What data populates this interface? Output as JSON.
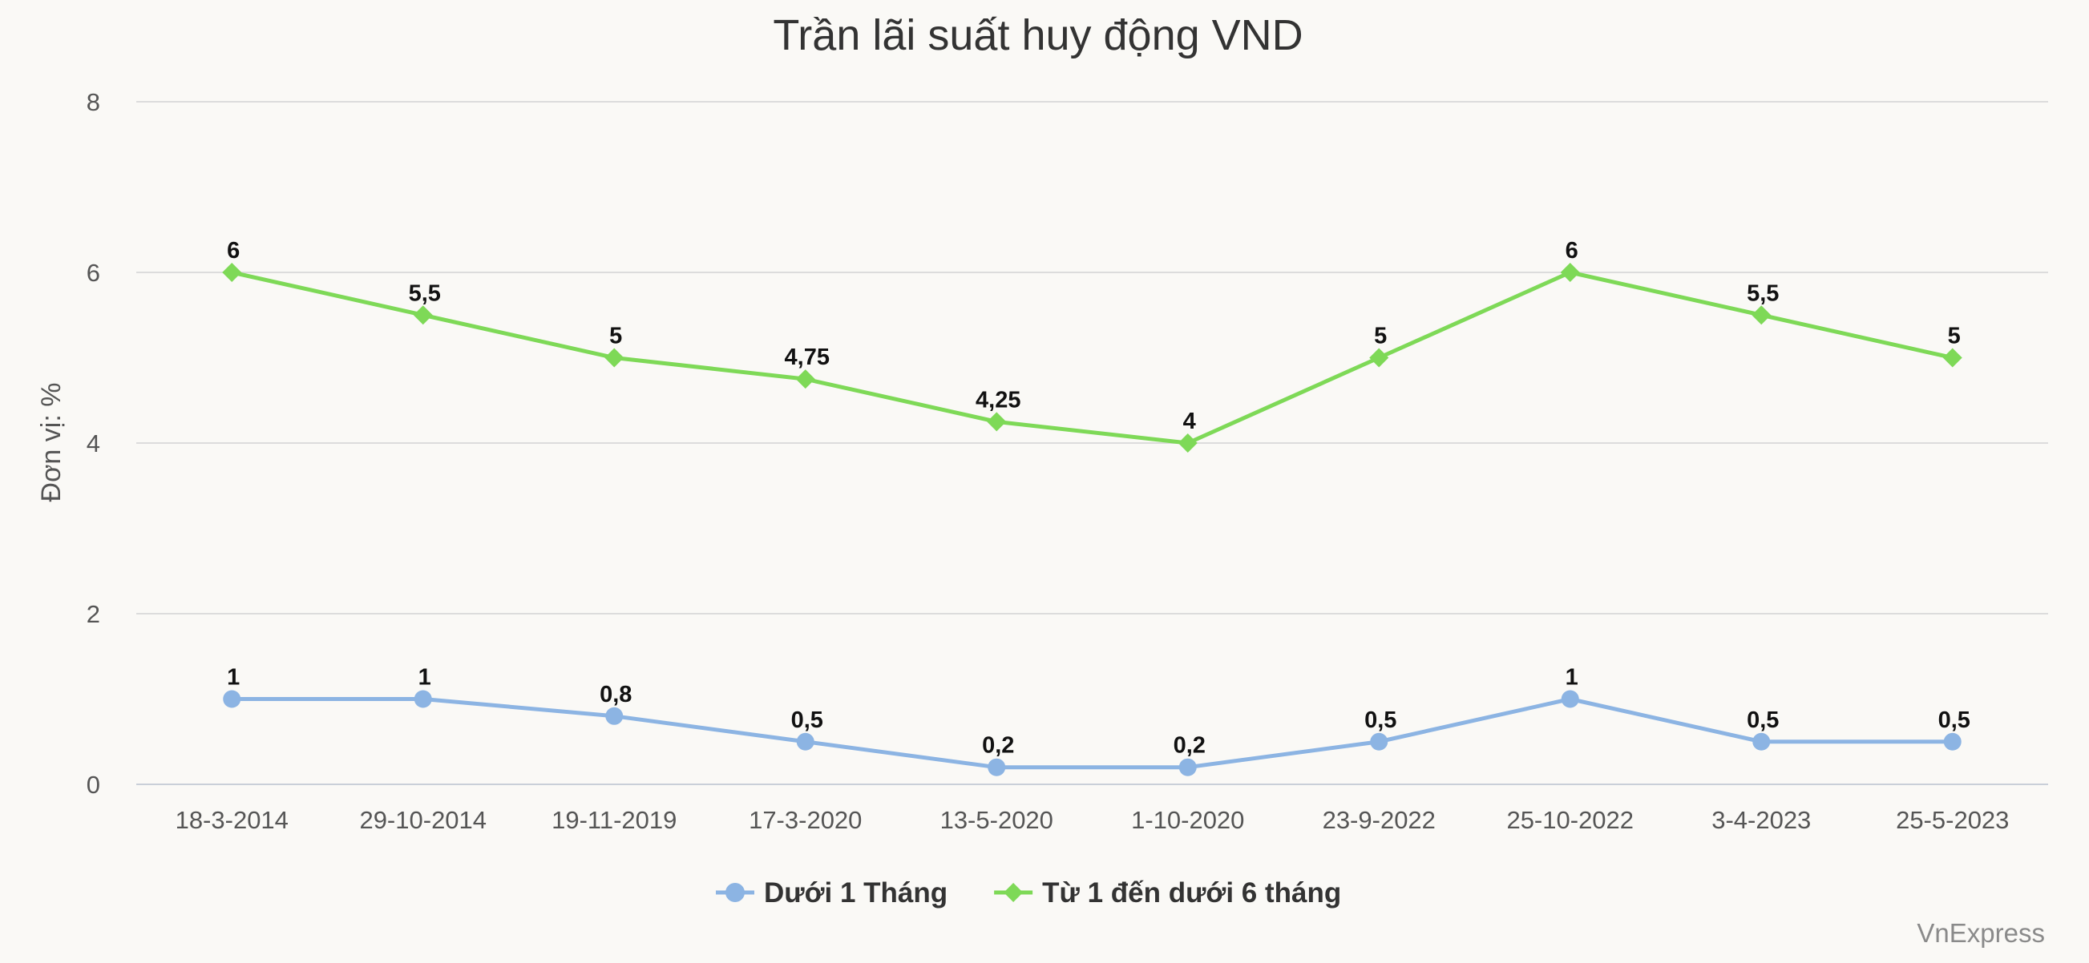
{
  "chart_data": {
    "type": "line",
    "title": "Trần lãi suất huy động VND",
    "xlabel": "",
    "ylabel": "Đơn vị: %",
    "categories": [
      "18-3-2014",
      "29-10-2014",
      "19-11-2019",
      "17-3-2020",
      "13-5-2020",
      "1-10-2020",
      "23-9-2022",
      "25-10-2022",
      "3-4-2023",
      "25-5-2023"
    ],
    "ylim": [
      0,
      8
    ],
    "yticks": [
      0,
      2,
      4,
      6,
      8
    ],
    "grid": true,
    "legend_position": "bottom",
    "series": [
      {
        "name": "Dưới 1 Tháng",
        "color": "#8cb4e3",
        "marker": "circle",
        "values": [
          1,
          1,
          0.8,
          0.5,
          0.2,
          0.2,
          0.5,
          1,
          0.5,
          0.5
        ],
        "labels": [
          "1",
          "1",
          "0,8",
          "0,5",
          "0,2",
          "0,2",
          "0,5",
          "1",
          "0,5",
          "0,5"
        ]
      },
      {
        "name": "Từ 1 đến dưới 6 tháng",
        "color": "#7ed957",
        "marker": "diamond",
        "values": [
          6,
          5.5,
          5,
          4.75,
          4.25,
          4,
          5,
          6,
          5.5,
          5
        ],
        "labels": [
          "6",
          "5,5",
          "5",
          "4,75",
          "4,25",
          "4",
          "5",
          "6",
          "5,5",
          "5"
        ]
      }
    ]
  },
  "credit": "VnExpress"
}
